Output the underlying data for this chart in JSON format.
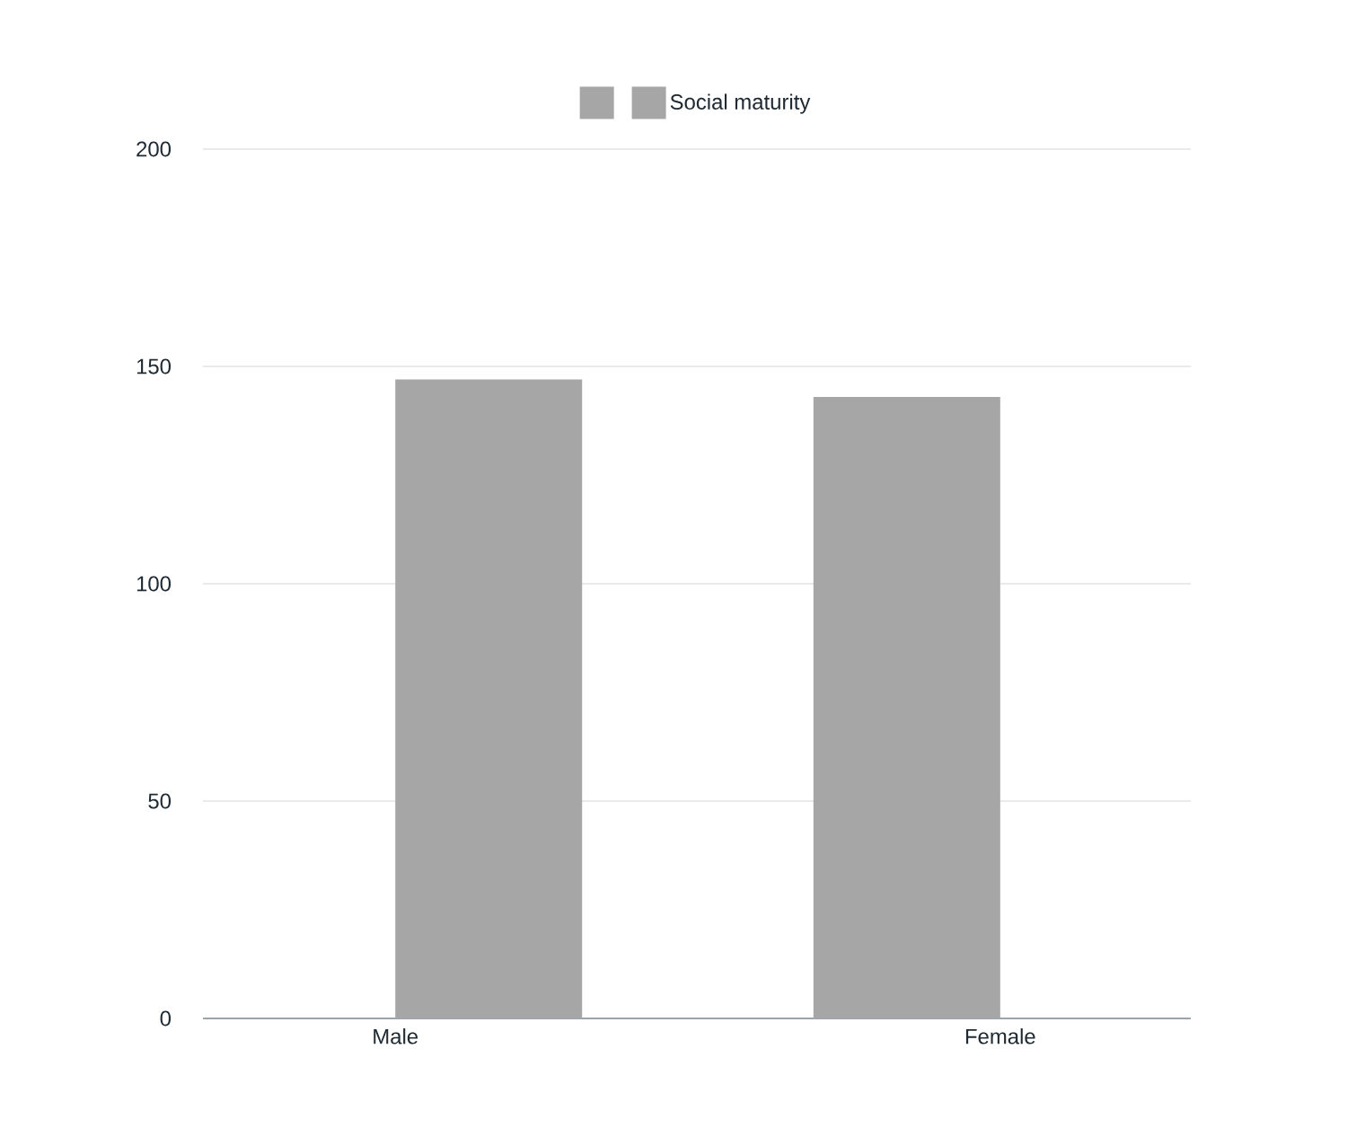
{
  "chart_data": {
    "type": "bar",
    "categories": [
      "Male",
      "Female"
    ],
    "series": [
      {
        "color": "#a6a6a6",
        "values": [
          null,
          143
        ]
      },
      {
        "name": "Social maturity",
        "color": "#a6a6a6",
        "values": [
          147,
          null
        ]
      }
    ],
    "ylim": [
      0,
      200
    ],
    "yticks": [
      0,
      50,
      100,
      150,
      200
    ],
    "grid": "y",
    "legend": "top"
  }
}
